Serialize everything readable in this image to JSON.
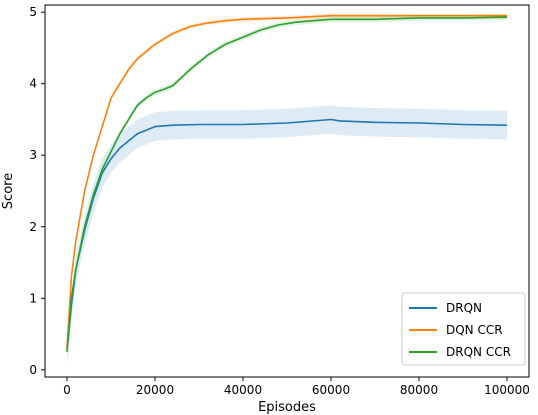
{
  "chart_data": {
    "type": "line",
    "title": "",
    "xlabel": "Episodes",
    "ylabel": "Score",
    "xlim": [
      -5000,
      105000
    ],
    "ylim": [
      -0.1,
      5.1
    ],
    "xticks": [
      0,
      20000,
      40000,
      60000,
      80000,
      100000
    ],
    "xtick_labels": [
      "0",
      "20000",
      "40000",
      "60000",
      "80000",
      "100000"
    ],
    "yticks": [
      0,
      1,
      2,
      3,
      4,
      5
    ],
    "ytick_labels": [
      "0",
      "1",
      "2",
      "3",
      "4",
      "5"
    ],
    "grid": false,
    "legend_position": "lower-right",
    "series": [
      {
        "name": "DRQN",
        "color": "#1f77b4",
        "band": 0.2,
        "x": [
          0,
          1000,
          2000,
          4000,
          6000,
          8000,
          10000,
          12000,
          14000,
          16000,
          18000,
          20000,
          24000,
          30000,
          40000,
          50000,
          60000,
          62000,
          70000,
          80000,
          90000,
          100000
        ],
        "y": [
          0.28,
          0.9,
          1.4,
          1.95,
          2.4,
          2.75,
          2.95,
          3.1,
          3.2,
          3.3,
          3.35,
          3.4,
          3.42,
          3.43,
          3.43,
          3.45,
          3.5,
          3.48,
          3.46,
          3.45,
          3.43,
          3.42
        ]
      },
      {
        "name": "DQN CCR",
        "color": "#ff7f0e",
        "band": 0.03,
        "x": [
          0,
          1000,
          2000,
          4000,
          6000,
          8000,
          10000,
          12000,
          14000,
          16000,
          18000,
          20000,
          24000,
          28000,
          32000,
          36000,
          40000,
          50000,
          60000,
          70000,
          80000,
          90000,
          100000
        ],
        "y": [
          0.3,
          1.3,
          1.8,
          2.5,
          3.0,
          3.4,
          3.8,
          4.0,
          4.2,
          4.35,
          4.45,
          4.55,
          4.7,
          4.8,
          4.85,
          4.88,
          4.9,
          4.92,
          4.95,
          4.95,
          4.95,
          4.95,
          4.95
        ]
      },
      {
        "name": "DRQN CCR",
        "color": "#2ca02c",
        "band": 0.04,
        "x": [
          0,
          1000,
          2000,
          4000,
          6000,
          8000,
          10000,
          12000,
          14000,
          16000,
          18000,
          20000,
          22000,
          24000,
          28000,
          32000,
          36000,
          40000,
          44000,
          48000,
          52000,
          56000,
          60000,
          70000,
          80000,
          90000,
          100000
        ],
        "y": [
          0.25,
          1.0,
          1.4,
          2.0,
          2.45,
          2.8,
          3.05,
          3.3,
          3.5,
          3.7,
          3.8,
          3.88,
          3.92,
          3.97,
          4.2,
          4.4,
          4.55,
          4.65,
          4.75,
          4.82,
          4.86,
          4.88,
          4.9,
          4.9,
          4.92,
          4.92,
          4.93
        ]
      }
    ]
  }
}
